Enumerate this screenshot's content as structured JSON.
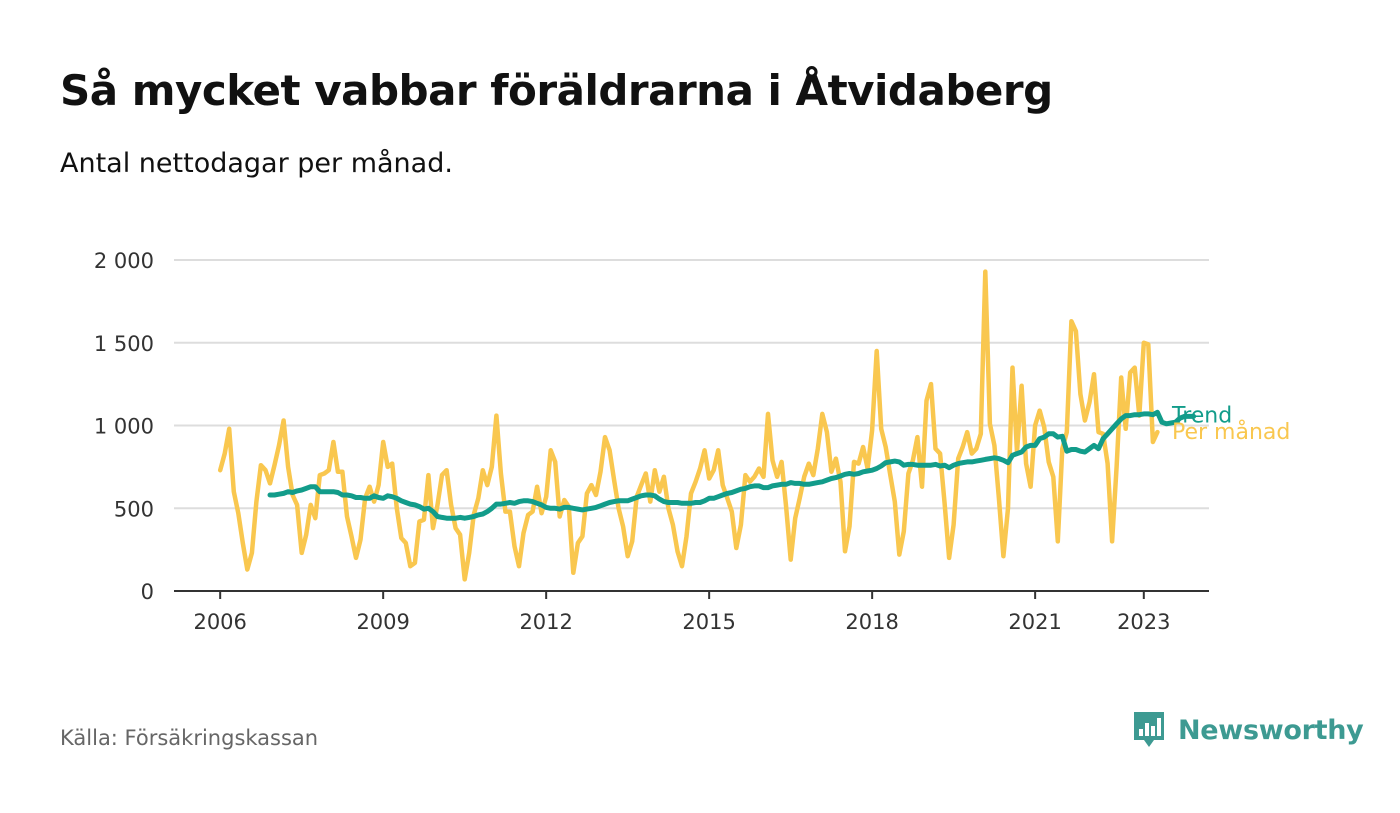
{
  "title": "Så mycket vabbar föräldrarna i Åtvidaberg",
  "subtitle": "Antal nettodagar per månad.",
  "source": "Källa: Försäkringskassan",
  "brand": {
    "name": "Newsworthy",
    "icon": "newsworthy-logo-icon",
    "color": "#3d9a92"
  },
  "colors": {
    "monthly": "#f9c74f",
    "trend": "#129c8a",
    "grid": "#dddddd",
    "axis": "#333333"
  },
  "chart_data": {
    "type": "line",
    "xlim": [
      2005.15,
      2024.2
    ],
    "ylim": [
      0,
      2000
    ],
    "y_ticks": [
      0,
      500,
      1000,
      1500,
      2000
    ],
    "y_tick_labels": [
      "0",
      "500",
      "1 000",
      "1 500",
      "2 000"
    ],
    "x_ticks": [
      2006,
      2009,
      2012,
      2015,
      2018,
      2021,
      2023
    ],
    "x_tick_labels": [
      "2006",
      "2009",
      "2012",
      "2015",
      "2018",
      "2021",
      "2023"
    ],
    "grid": true,
    "series": [
      {
        "name": "Per månad",
        "color": "#f9c74f",
        "x_start": 2006.0,
        "step": 0.0833333,
        "values": [
          730,
          830,
          980,
          600,
          470,
          290,
          130,
          230,
          540,
          760,
          730,
          650,
          760,
          880,
          1030,
          750,
          580,
          520,
          230,
          340,
          520,
          440,
          700,
          710,
          730,
          900,
          720,
          720,
          450,
          330,
          200,
          310,
          560,
          630,
          540,
          640,
          900,
          750,
          770,
          500,
          320,
          290,
          150,
          170,
          420,
          430,
          700,
          380,
          520,
          700,
          730,
          520,
          380,
          340,
          70,
          230,
          460,
          560,
          730,
          640,
          750,
          1060,
          710,
          480,
          480,
          270,
          150,
          350,
          460,
          480,
          630,
          470,
          570,
          850,
          780,
          450,
          550,
          510,
          110,
          290,
          330,
          590,
          640,
          580,
          720,
          930,
          850,
          670,
          500,
          390,
          210,
          300,
          570,
          640,
          710,
          540,
          730,
          600,
          690,
          500,
          400,
          240,
          150,
          330,
          590,
          660,
          740,
          850,
          680,
          730,
          850,
          640,
          560,
          480,
          260,
          400,
          700,
          660,
          690,
          740,
          690,
          1070,
          790,
          690,
          780,
          510,
          190,
          440,
          560,
          690,
          770,
          700,
          860,
          1070,
          960,
          720,
          800,
          660,
          240,
          390,
          780,
          770,
          870,
          740,
          970,
          1450,
          980,
          870,
          700,
          540,
          220,
          360,
          710,
          790,
          930,
          630,
          1150,
          1250,
          860,
          830,
          530,
          200,
          400,
          800,
          870,
          960,
          830,
          860,
          950,
          1930,
          1010,
          880,
          560,
          210,
          500,
          1350,
          840,
          1240,
          770,
          630,
          1000,
          1090,
          990,
          780,
          690,
          300,
          860,
          960,
          1630,
          1570,
          1190,
          1030,
          1140,
          1310,
          960,
          950,
          770,
          300,
          750,
          1290,
          980,
          1320,
          1350,
          1060,
          1500,
          1490,
          900,
          960
        ]
      },
      {
        "name": "Trend",
        "color": "#129c8a",
        "x_start": 2006.9167,
        "step": 0.0833333,
        "values": [
          580,
          580,
          585,
          590,
          600,
          595,
          605,
          610,
          620,
          630,
          630,
          600,
          600,
          600,
          600,
          595,
          580,
          580,
          575,
          565,
          565,
          560,
          560,
          575,
          565,
          560,
          575,
          570,
          560,
          545,
          535,
          525,
          520,
          510,
          495,
          500,
          480,
          450,
          445,
          440,
          440,
          440,
          445,
          440,
          445,
          450,
          460,
          465,
          480,
          500,
          525,
          525,
          530,
          535,
          530,
          540,
          545,
          545,
          540,
          530,
          520,
          505,
          500,
          500,
          495,
          505,
          505,
          500,
          495,
          490,
          495,
          500,
          505,
          515,
          525,
          535,
          540,
          545,
          545,
          545,
          555,
          565,
          575,
          580,
          580,
          575,
          555,
          540,
          535,
          535,
          535,
          530,
          530,
          530,
          535,
          535,
          545,
          560,
          560,
          570,
          580,
          590,
          595,
          605,
          615,
          620,
          630,
          635,
          635,
          625,
          625,
          635,
          640,
          645,
          645,
          655,
          650,
          650,
          645,
          645,
          650,
          655,
          660,
          670,
          680,
          685,
          695,
          705,
          710,
          705,
          710,
          720,
          725,
          730,
          740,
          755,
          775,
          780,
          785,
          780,
          760,
          765,
          765,
          760,
          760,
          760,
          760,
          765,
          755,
          760,
          745,
          760,
          770,
          775,
          780,
          780,
          785,
          790,
          795,
          800,
          805,
          800,
          790,
          775,
          820,
          830,
          840,
          870,
          880,
          880,
          920,
          930,
          950,
          950,
          930,
          935,
          845,
          855,
          855,
          845,
          840,
          860,
          880,
          860,
          920,
          950,
          980,
          1010,
          1040,
          1060,
          1060,
          1065,
          1065,
          1070,
          1070,
          1065,
          1080,
          1020,
          1010,
          1015,
          1020,
          1045,
          1055,
          1055,
          1055
        ]
      }
    ],
    "legend": "inline-right"
  }
}
